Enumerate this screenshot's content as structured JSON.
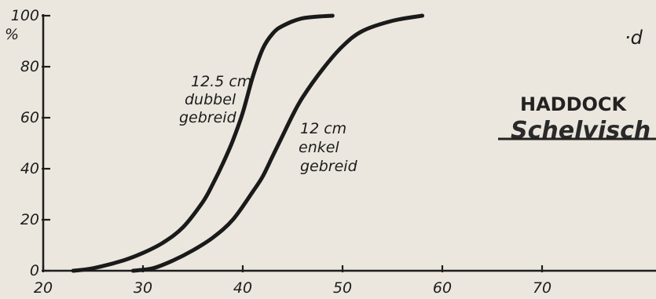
{
  "chart_data": {
    "type": "line",
    "ylabel": "%",
    "xlabel": "",
    "xlim": [
      20,
      80
    ],
    "ylim": [
      0,
      100
    ],
    "x_ticks": [
      20,
      30,
      40,
      50,
      60,
      70
    ],
    "y_ticks": [
      0,
      20,
      40,
      60,
      80,
      100
    ],
    "grid": false,
    "series": [
      {
        "name": "12.5 cm dubbel gebreid",
        "label_lines": [
          "12.5 cm",
          "dubbel",
          "gebreid"
        ],
        "x": [
          23,
          25,
          28,
          30,
          32,
          34,
          36,
          37,
          38,
          39,
          40,
          41,
          42,
          43,
          44,
          46,
          49
        ],
        "values": [
          0,
          1,
          4,
          7,
          11,
          17,
          27,
          34,
          42,
          51,
          62,
          76,
          87,
          93,
          96,
          99,
          100
        ]
      },
      {
        "name": "12 cm enkel gebreid",
        "label_lines": [
          "12 cm",
          "enkel",
          "gebreid"
        ],
        "x": [
          29,
          31,
          33,
          35,
          37,
          39,
          41,
          42,
          43,
          44,
          45,
          46,
          48,
          50,
          52,
          55,
          58
        ],
        "values": [
          0,
          1,
          4,
          8,
          13,
          20,
          31,
          37,
          45,
          53,
          61,
          68,
          79,
          88,
          94,
          98,
          100
        ]
      }
    ]
  },
  "annotations": {
    "corner_mark": "·d",
    "species_title": "HADDOCK",
    "species_subtitle": "Schelvisch"
  }
}
